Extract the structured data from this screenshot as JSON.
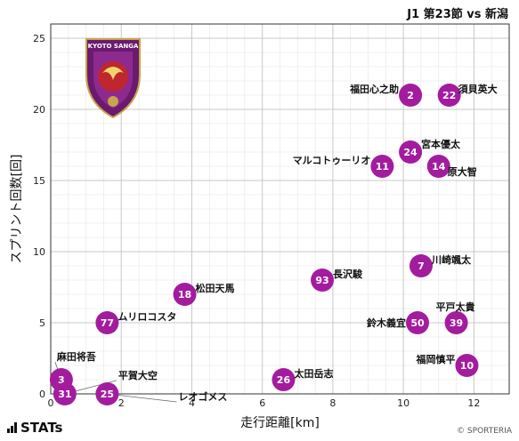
{
  "header": {
    "match_title": "J1 第23節 vs 新潟"
  },
  "footer": {
    "brand": "STATs",
    "credit": "© SPORTERIA"
  },
  "logo": {
    "text": "KYOTO SANGA"
  },
  "colors": {
    "marker": "#a31c9e",
    "marker_text": "#ffffff",
    "grid": "#c8c8c8"
  },
  "chart_data": {
    "type": "scatter",
    "xlabel": "走行距離[km]",
    "ylabel": "スプリント回数[回]",
    "xlim": [
      0,
      13
    ],
    "ylim": [
      0,
      26
    ],
    "xticks": [
      0,
      2,
      4,
      6,
      8,
      10,
      12
    ],
    "yticks": [
      0,
      5,
      10,
      15,
      20,
      25
    ],
    "grid": true,
    "points": [
      {
        "number": "2",
        "name": "福田心之助",
        "x": 10.2,
        "y": 21
      },
      {
        "number": "22",
        "name": "須貝英大",
        "x": 11.3,
        "y": 21
      },
      {
        "number": "24",
        "name": "宮本優太",
        "x": 10.2,
        "y": 17
      },
      {
        "number": "11",
        "name": "マルコトゥーリオ",
        "x": 9.4,
        "y": 16
      },
      {
        "number": "14",
        "name": "原大智",
        "x": 11.0,
        "y": 16
      },
      {
        "number": "7",
        "name": "川崎颯太",
        "x": 10.5,
        "y": 9
      },
      {
        "number": "93",
        "name": "長沢駿",
        "x": 7.7,
        "y": 8
      },
      {
        "number": "18",
        "name": "松田天馬",
        "x": 3.8,
        "y": 7
      },
      {
        "number": "77",
        "name": "ムリロコスタ",
        "x": 1.6,
        "y": 5
      },
      {
        "number": "50",
        "name": "鈴木義宜",
        "x": 10.4,
        "y": 5
      },
      {
        "number": "39",
        "name": "平戸太貴",
        "x": 11.5,
        "y": 5
      },
      {
        "number": "10",
        "name": "福岡慎平",
        "x": 11.8,
        "y": 2
      },
      {
        "number": "26",
        "name": "太田岳志",
        "x": 6.6,
        "y": 1
      },
      {
        "number": "3",
        "name": "麻田将吾",
        "x": 0.3,
        "y": 1
      },
      {
        "number": "31",
        "name": "平賀大空",
        "x": 0.4,
        "y": 0
      },
      {
        "number": "25",
        "name": "レオゴメス",
        "x": 1.6,
        "y": 0
      }
    ]
  }
}
